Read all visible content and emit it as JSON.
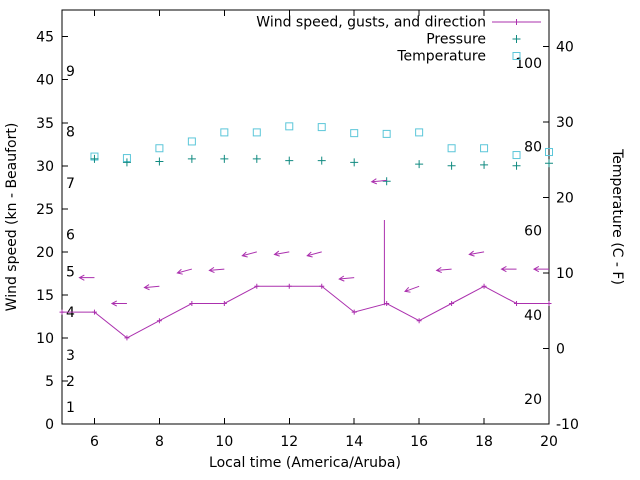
{
  "chart_data": {
    "type": "line",
    "title": "",
    "xlabel": "Local time (America/Aruba)",
    "ylabel_left": "Wind speed (kn - Beaufort)",
    "ylabel_right": "Temperature (C - F)",
    "x_range": [
      5,
      20
    ],
    "x_ticks": [
      6,
      8,
      10,
      12,
      14,
      16,
      18,
      20
    ],
    "y_left_range": [
      0,
      48.1
    ],
    "y_left_ticks": [
      0,
      5,
      10,
      15,
      20,
      25,
      30,
      35,
      40,
      45
    ],
    "y_right_range": [
      -10,
      44.8
    ],
    "y_right_ticks": [
      -10,
      0,
      10,
      20,
      30,
      40
    ],
    "beaufort_labels": [
      {
        "label": "1",
        "kn": 2
      },
      {
        "label": "2",
        "kn": 5
      },
      {
        "label": "3",
        "kn": 8
      },
      {
        "label": "4",
        "kn": 13
      },
      {
        "label": "5",
        "kn": 17.7
      },
      {
        "label": "6",
        "kn": 22
      },
      {
        "label": "7",
        "kn": 28
      },
      {
        "label": "8",
        "kn": 34
      },
      {
        "label": "9",
        "kn": 41
      }
    ],
    "fahrenheit_labels": [
      {
        "label": "20",
        "c": -6.7
      },
      {
        "label": "40",
        "c": 4.4
      },
      {
        "label": "60",
        "c": 15.6
      },
      {
        "label": "80",
        "c": 26.7
      },
      {
        "label": "100",
        "c": 37.8
      }
    ],
    "colors": {
      "wind": "#ab30ae",
      "pressure": "#108a80",
      "temperature": "#5bc6d9",
      "axis": "#000000"
    },
    "legend_position": "top-right",
    "grid": false,
    "series": [
      {
        "name": "wind",
        "legend": "Wind speed, gusts, and direction",
        "x": [
          5,
          6,
          7,
          8,
          9,
          10,
          11,
          12,
          13,
          14,
          15,
          16,
          17,
          18,
          19,
          20
        ],
        "values": [
          13,
          13,
          10,
          12,
          14,
          14,
          16,
          16,
          16,
          13,
          14,
          12,
          14,
          16,
          14,
          14
        ]
      },
      {
        "name": "pressure",
        "legend": "Pressure",
        "x": [
          6,
          7,
          8,
          9,
          10,
          11,
          12,
          13,
          14,
          15,
          16,
          17,
          18,
          19,
          20
        ],
        "values": [
          30.8,
          30.4,
          30.5,
          30.8,
          30.8,
          30.8,
          30.6,
          30.6,
          30.4,
          28.2,
          30.2,
          30.0,
          30.1,
          30.0,
          30.3
        ]
      },
      {
        "name": "temperature",
        "legend": "Temperature",
        "x": [
          6,
          7,
          8,
          9,
          10,
          11,
          12,
          13,
          14,
          15,
          16,
          17,
          18,
          19,
          20
        ],
        "values": [
          25.4,
          25.2,
          26.5,
          27.4,
          28.6,
          28.6,
          29.4,
          29.3,
          28.5,
          28.4,
          28.6,
          26.5,
          26.5,
          25.6,
          26.0
        ]
      }
    ],
    "gusts": {
      "x": [
        6,
        7,
        8,
        9,
        10,
        11,
        12,
        13,
        14,
        15,
        16,
        17,
        18,
        19,
        20
      ],
      "kn": [
        17,
        14,
        16,
        18,
        18,
        20,
        20,
        20,
        17,
        28.3,
        16,
        18,
        20,
        18,
        18
      ],
      "angle_deg": [
        180,
        180,
        185,
        195,
        185,
        195,
        190,
        195,
        185,
        185,
        200,
        185,
        190,
        180,
        180
      ]
    },
    "wind_spike": {
      "x": 14.93,
      "from_kn": 13.8,
      "to_kn": 23.7
    }
  }
}
